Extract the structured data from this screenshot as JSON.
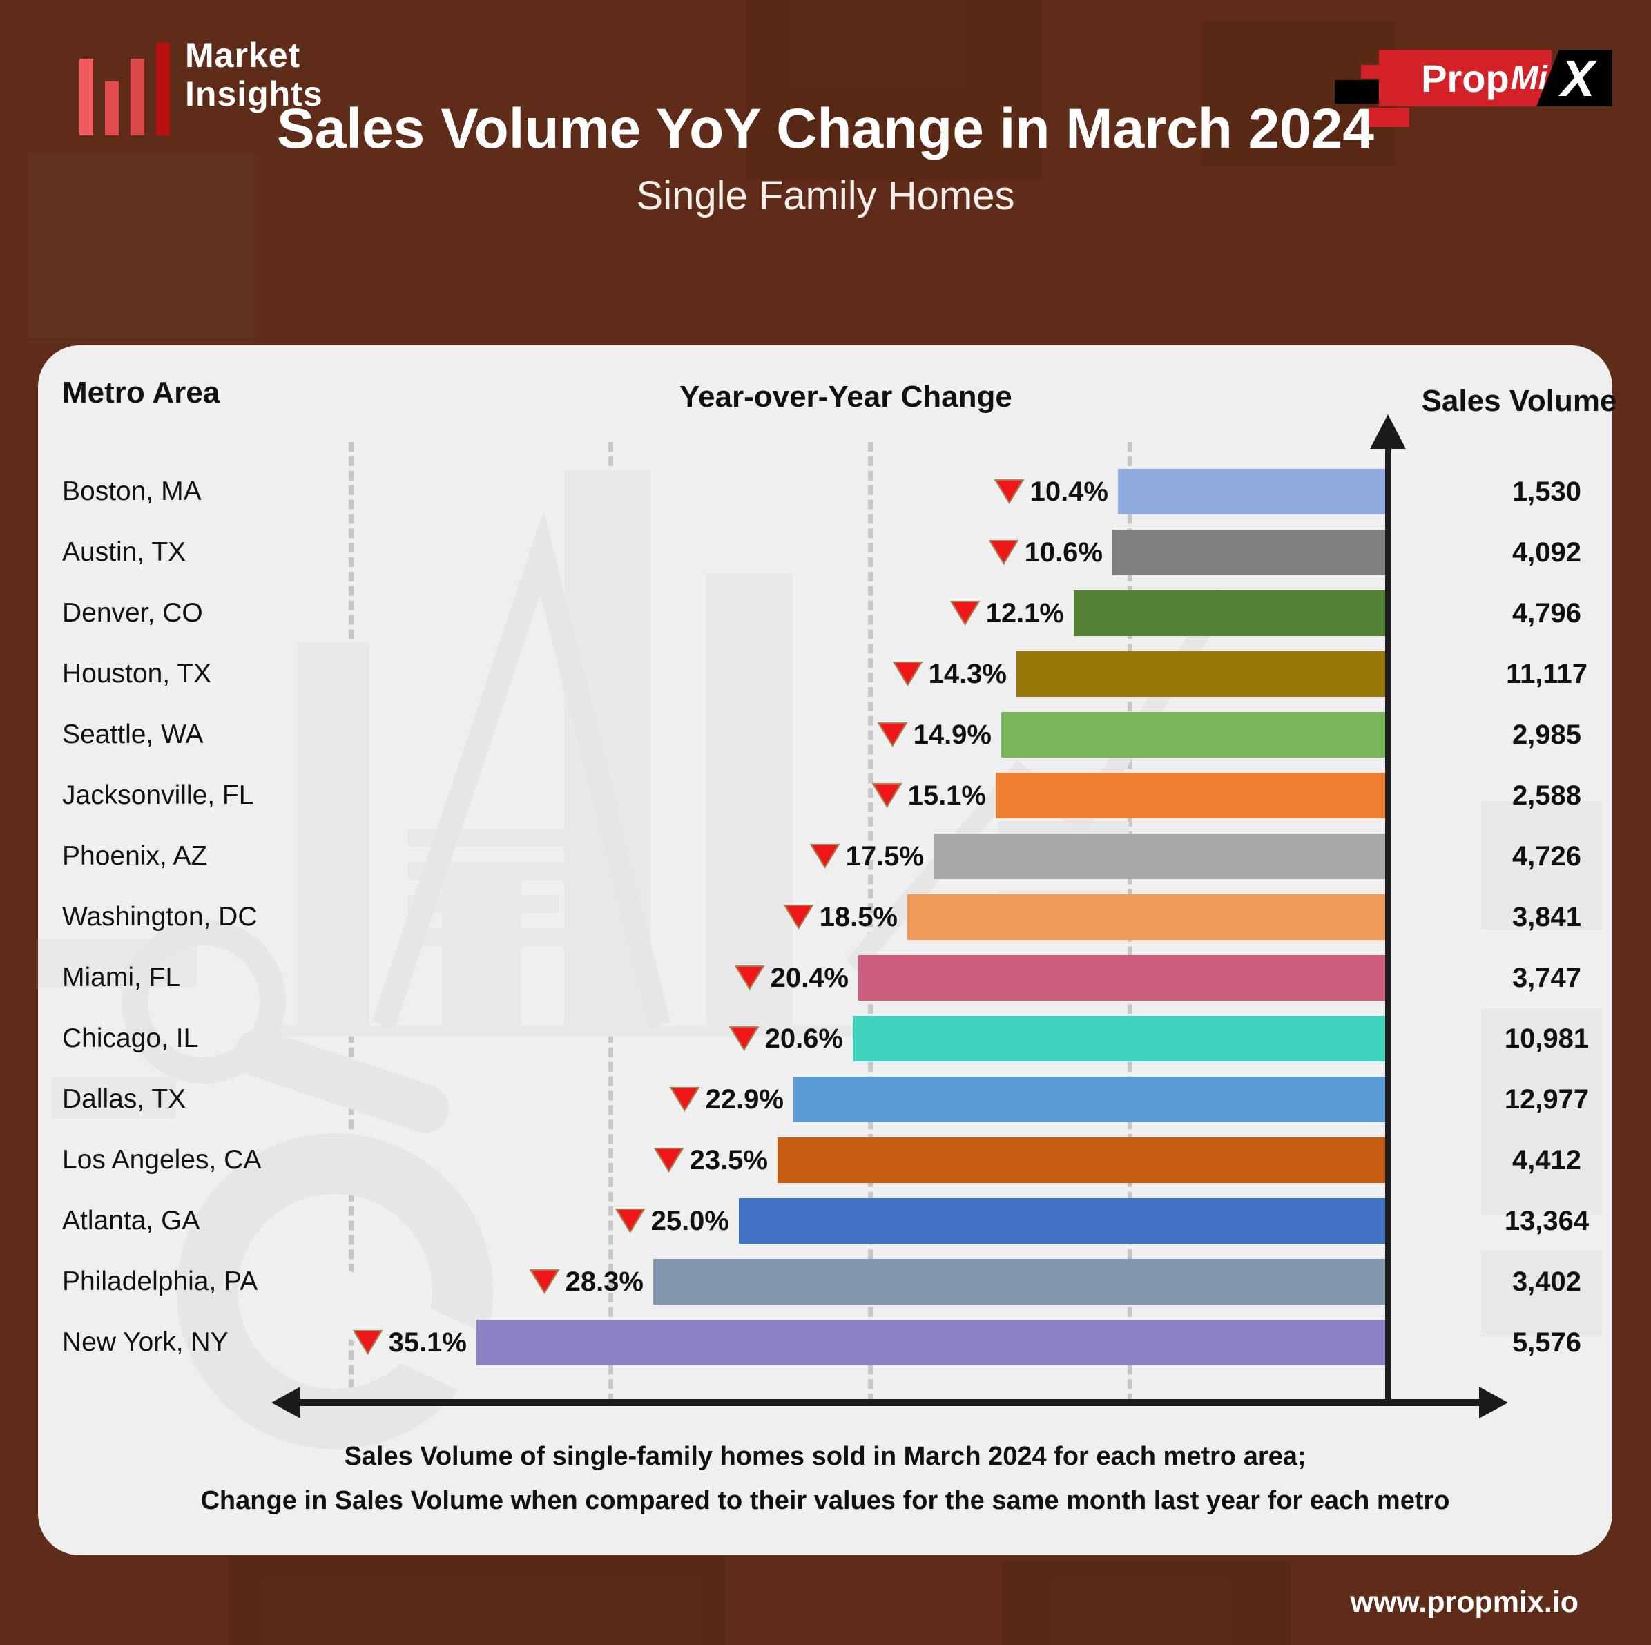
{
  "brand": {
    "name_line1": "Market",
    "name_line2": "Insights",
    "partner": {
      "prop": "Prop",
      "mi": "Mi",
      "x": "X"
    }
  },
  "title": "Sales Volume YoY Change in March 2024",
  "subtitle": "Single Family Homes",
  "columns": {
    "metro": "Metro Area",
    "change": "Year-over-Year Change",
    "volume": "Sales Volume"
  },
  "chart_data": {
    "type": "bar",
    "orientation": "horizontal",
    "title": "Sales Volume YoY Change in March 2024",
    "subtitle": "Single Family Homes",
    "categories": [
      "Boston, MA",
      "Austin, TX",
      "Denver, CO",
      "Houston, TX",
      "Seattle, WA",
      "Jacksonville, FL",
      "Phoenix, AZ",
      "Washington, DC",
      "Miami, FL",
      "Chicago, IL",
      "Dallas, TX",
      "Los Angeles, CA",
      "Atlanta, GA",
      "Philadelphia, PA",
      "New York, NY"
    ],
    "series": [
      {
        "name": "Year-over-Year Change (%)",
        "values": [
          -10.4,
          -10.6,
          -12.1,
          -14.3,
          -14.9,
          -15.1,
          -17.5,
          -18.5,
          -20.4,
          -20.6,
          -22.9,
          -23.5,
          -25.0,
          -28.3,
          -35.1
        ]
      },
      {
        "name": "Sales Volume",
        "values": [
          1530,
          4092,
          4796,
          11117,
          2985,
          2588,
          4726,
          3841,
          3747,
          10981,
          12977,
          4412,
          13364,
          3402,
          5576
        ]
      }
    ],
    "x_axis": {
      "unit": "%",
      "direction": "decline-to-left",
      "gridlines_pct": [
        10,
        20,
        30,
        40
      ],
      "zero_at_right": true
    },
    "indicator": "red-down-triangle",
    "rows": [
      {
        "metro": "Boston, MA",
        "pct": 10.4,
        "pct_label": "10.4%",
        "direction": "down",
        "volume": "1,530",
        "color": "#8faadc"
      },
      {
        "metro": "Austin, TX",
        "pct": 10.6,
        "pct_label": "10.6%",
        "direction": "down",
        "volume": "4,092",
        "color": "#7f7f7f"
      },
      {
        "metro": "Denver, CO",
        "pct": 12.1,
        "pct_label": "12.1%",
        "direction": "down",
        "volume": "4,796",
        "color": "#548235"
      },
      {
        "metro": "Houston, TX",
        "pct": 14.3,
        "pct_label": "14.3%",
        "direction": "down",
        "volume": "11,117",
        "color": "#997807"
      },
      {
        "metro": "Seattle, WA",
        "pct": 14.9,
        "pct_label": "14.9%",
        "direction": "down",
        "volume": "2,985",
        "color": "#7bb75b"
      },
      {
        "metro": "Jacksonville, FL",
        "pct": 15.1,
        "pct_label": "15.1%",
        "direction": "down",
        "volume": "2,588",
        "color": "#ed7d31"
      },
      {
        "metro": "Phoenix, AZ",
        "pct": 17.5,
        "pct_label": "17.5%",
        "direction": "down",
        "volume": "4,726",
        "color": "#a9a9a9"
      },
      {
        "metro": "Washington, DC",
        "pct": 18.5,
        "pct_label": "18.5%",
        "direction": "down",
        "volume": "3,841",
        "color": "#f09a57"
      },
      {
        "metro": "Miami, FL",
        "pct": 20.4,
        "pct_label": "20.4%",
        "direction": "down",
        "volume": "3,747",
        "color": "#cb5f7d"
      },
      {
        "metro": "Chicago, IL",
        "pct": 20.6,
        "pct_label": "20.6%",
        "direction": "down",
        "volume": "10,981",
        "color": "#3ed1bb"
      },
      {
        "metro": "Dallas, TX",
        "pct": 22.9,
        "pct_label": "22.9%",
        "direction": "down",
        "volume": "12,977",
        "color": "#5b9bd5"
      },
      {
        "metro": "Los Angeles, CA",
        "pct": 23.5,
        "pct_label": "23.5%",
        "direction": "down",
        "volume": "4,412",
        "color": "#c55a11"
      },
      {
        "metro": "Atlanta, GA",
        "pct": 25.0,
        "pct_label": "25.0%",
        "direction": "down",
        "volume": "13,364",
        "color": "#4472c4"
      },
      {
        "metro": "Philadelphia, PA",
        "pct": 28.3,
        "pct_label": "28.3%",
        "direction": "down",
        "volume": "3,402",
        "color": "#8497b0"
      },
      {
        "metro": "New York, NY",
        "pct": 35.1,
        "pct_label": "35.1%",
        "direction": "down",
        "volume": "5,576",
        "color": "#8b82c6"
      }
    ],
    "legend_position": "none",
    "grid": true
  },
  "footnotes": {
    "line1": "Sales Volume of single-family homes sold in March 2024 for each metro area;",
    "line2": "Change in Sales Volume when compared to their values for the same month last year for each metro"
  },
  "footer": {
    "website": "www.propmix.io"
  },
  "colors": {
    "background": "#5e2c18",
    "panel": "#efefef",
    "axis": "#1b1b1b",
    "indicator_fill": "#ee1616",
    "indicator_border": "#a97a4f",
    "brand_red": "#d42127"
  }
}
